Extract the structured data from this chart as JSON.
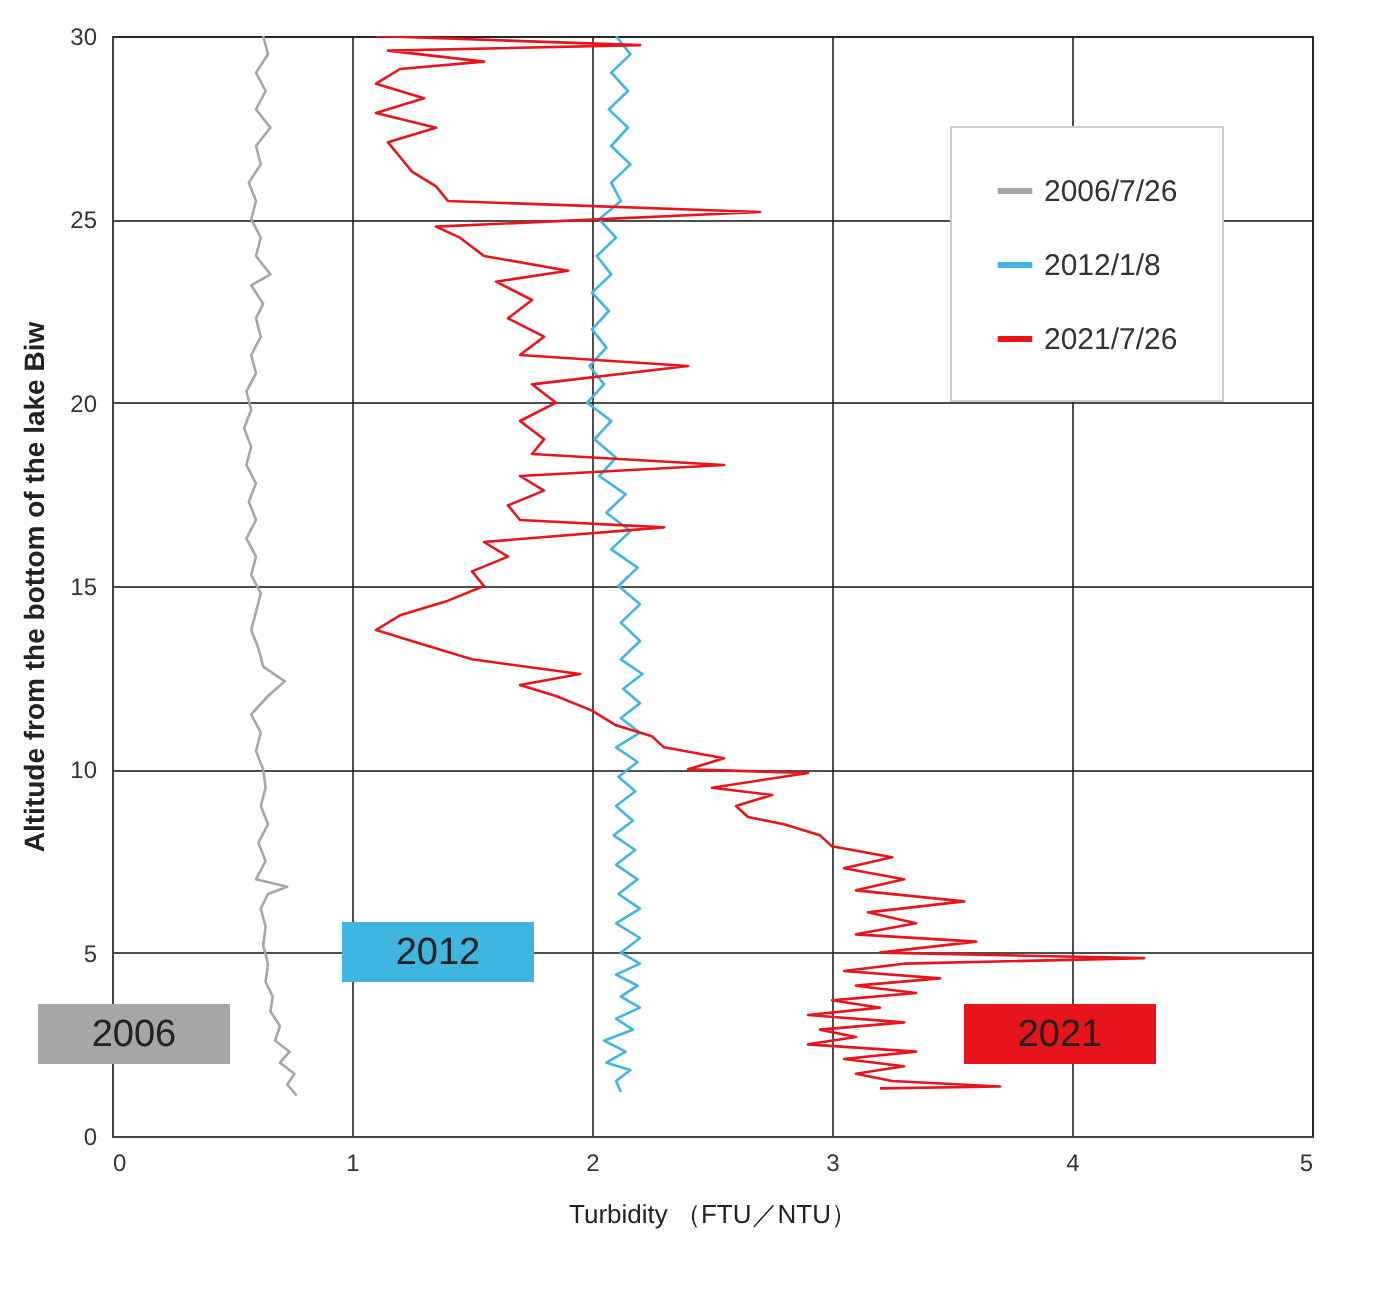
{
  "chart_data": {
    "type": "line",
    "xlabel": "Turbidity （FTU／NTU）",
    "ylabel": "Altitude from the bottom of the lake Biw",
    "xlim": [
      0,
      5
    ],
    "xticks": [
      0,
      1,
      2,
      3,
      4,
      5
    ],
    "ylim": [
      0,
      30
    ],
    "yticks": [
      0,
      5,
      10,
      15,
      20,
      25,
      30
    ],
    "grid": true,
    "legend": "top right",
    "line_style": "solid",
    "series": [
      {
        "name": "2006/7/26",
        "color": "#a6a6a6",
        "x": [
          0.77,
          0.73,
          0.76,
          0.7,
          0.74,
          0.68,
          0.7,
          0.66,
          0.67,
          0.64,
          0.65,
          0.63,
          0.64,
          0.62,
          0.65,
          0.73,
          0.6,
          0.64,
          0.61,
          0.65,
          0.62,
          0.64,
          0.63,
          0.6,
          0.62,
          0.58,
          0.65,
          0.72,
          0.63,
          0.61,
          0.58,
          0.6,
          0.62,
          0.58,
          0.6,
          0.56,
          0.6,
          0.57,
          0.6,
          0.56,
          0.58,
          0.55,
          0.58,
          0.56,
          0.6,
          0.58,
          0.62,
          0.6,
          0.63,
          0.58,
          0.66,
          0.6,
          0.62,
          0.58,
          0.6,
          0.57,
          0.62,
          0.6,
          0.66,
          0.6,
          0.64,
          0.6,
          0.65,
          0.63
        ],
        "values": [
          1.1,
          1.4,
          1.7,
          2.0,
          2.3,
          2.6,
          3.0,
          3.4,
          3.8,
          4.2,
          4.7,
          5.2,
          5.7,
          6.2,
          6.6,
          6.8,
          7.0,
          7.5,
          8.0,
          8.5,
          9.0,
          9.5,
          10.0,
          10.5,
          11.0,
          11.5,
          12.0,
          12.4,
          12.8,
          13.3,
          13.8,
          14.3,
          14.8,
          15.3,
          15.8,
          16.3,
          16.8,
          17.3,
          17.8,
          18.3,
          18.8,
          19.3,
          19.8,
          20.3,
          20.8,
          21.3,
          21.8,
          22.3,
          22.7,
          23.2,
          23.5,
          24.0,
          24.5,
          25.0,
          25.5,
          26.0,
          26.5,
          27.0,
          27.5,
          28.0,
          28.5,
          29.0,
          29.5,
          30.0
        ]
      },
      {
        "name": "2012/1/8",
        "color": "#3fb5e0",
        "x": [
          2.12,
          2.1,
          2.16,
          2.06,
          2.14,
          2.05,
          2.17,
          2.1,
          2.2,
          2.12,
          2.19,
          2.1,
          2.2,
          2.12,
          2.2,
          2.1,
          2.2,
          2.11,
          2.19,
          2.1,
          2.18,
          2.09,
          2.17,
          2.1,
          2.18,
          2.11,
          2.19,
          2.1,
          2.2,
          2.12,
          2.2,
          2.13,
          2.21,
          2.12,
          2.2,
          2.12,
          2.2,
          2.11,
          2.19,
          2.08,
          2.16,
          2.06,
          2.14,
          2.03,
          2.1,
          2.01,
          2.08,
          1.98,
          2.05,
          1.99,
          2.06,
          2.0,
          2.07,
          2.0,
          2.08,
          2.02,
          2.1,
          2.03,
          2.12,
          2.08,
          2.16,
          2.08,
          2.15,
          2.07,
          2.15,
          2.08,
          2.16,
          2.1
        ],
        "values": [
          1.2,
          1.5,
          1.8,
          2.0,
          2.3,
          2.6,
          2.9,
          3.2,
          3.5,
          3.8,
          4.1,
          4.4,
          4.7,
          5.0,
          5.4,
          5.8,
          6.2,
          6.6,
          7.0,
          7.4,
          7.8,
          8.2,
          8.6,
          9.0,
          9.4,
          9.8,
          10.2,
          10.6,
          11.0,
          11.4,
          11.8,
          12.2,
          12.6,
          13.0,
          13.5,
          14.0,
          14.5,
          15.0,
          15.5,
          16.0,
          16.5,
          17.0,
          17.5,
          18.0,
          18.5,
          19.0,
          19.5,
          20.0,
          20.5,
          21.0,
          21.5,
          22.0,
          22.5,
          23.0,
          23.5,
          24.0,
          24.5,
          25.0,
          25.5,
          26.0,
          26.5,
          27.0,
          27.5,
          28.0,
          28.5,
          29.0,
          29.5,
          30.0
        ]
      },
      {
        "name": "2021/7/26",
        "color": "#e8141c",
        "x": [
          3.2,
          3.7,
          3.25,
          3.1,
          3.3,
          3.05,
          3.35,
          2.9,
          3.1,
          2.95,
          3.3,
          2.9,
          3.2,
          3.0,
          3.35,
          3.1,
          3.45,
          3.05,
          3.3,
          4.3,
          3.2,
          3.6,
          3.1,
          3.35,
          3.15,
          3.55,
          3.1,
          3.3,
          3.05,
          3.25,
          3.0,
          2.95,
          2.8,
          2.65,
          2.6,
          2.75,
          2.5,
          2.9,
          2.4,
          2.55,
          2.3,
          2.25,
          2.1,
          2.0,
          1.85,
          1.7,
          1.95,
          1.5,
          1.3,
          1.1,
          1.2,
          1.4,
          1.55,
          1.5,
          1.65,
          1.55,
          2.3,
          1.7,
          1.65,
          1.8,
          1.7,
          2.55,
          1.75,
          1.8,
          1.7,
          1.85,
          1.75,
          2.4,
          1.7,
          1.8,
          1.65,
          1.75,
          1.6,
          1.9,
          1.55,
          1.45,
          1.35,
          2.7,
          1.4,
          1.35,
          1.25,
          1.2,
          1.15,
          1.35,
          1.1,
          1.3,
          1.1,
          1.2,
          1.55,
          1.15,
          2.2,
          1.1
        ],
        "values": [
          1.3,
          1.35,
          1.5,
          1.7,
          1.9,
          2.1,
          2.3,
          2.5,
          2.7,
          2.9,
          3.1,
          3.3,
          3.5,
          3.7,
          3.9,
          4.1,
          4.3,
          4.5,
          4.7,
          4.85,
          5.0,
          5.3,
          5.5,
          5.8,
          6.1,
          6.4,
          6.7,
          7.0,
          7.3,
          7.6,
          7.9,
          8.2,
          8.5,
          8.7,
          9.0,
          9.3,
          9.5,
          9.9,
          10.0,
          10.3,
          10.6,
          10.9,
          11.2,
          11.6,
          12.0,
          12.3,
          12.6,
          13.0,
          13.4,
          13.8,
          14.2,
          14.6,
          15.0,
          15.4,
          15.8,
          16.2,
          16.6,
          16.8,
          17.2,
          17.6,
          18.0,
          18.3,
          18.6,
          19.0,
          19.5,
          20.0,
          20.5,
          21.0,
          21.3,
          21.8,
          22.3,
          22.8,
          23.3,
          23.6,
          24.0,
          24.5,
          24.8,
          25.2,
          25.5,
          25.9,
          26.3,
          26.7,
          27.1,
          27.5,
          27.9,
          28.3,
          28.7,
          29.1,
          29.3,
          29.6,
          29.75,
          30.0
        ]
      }
    ],
    "annotations": [
      "2006",
      "2012",
      "2021"
    ]
  }
}
